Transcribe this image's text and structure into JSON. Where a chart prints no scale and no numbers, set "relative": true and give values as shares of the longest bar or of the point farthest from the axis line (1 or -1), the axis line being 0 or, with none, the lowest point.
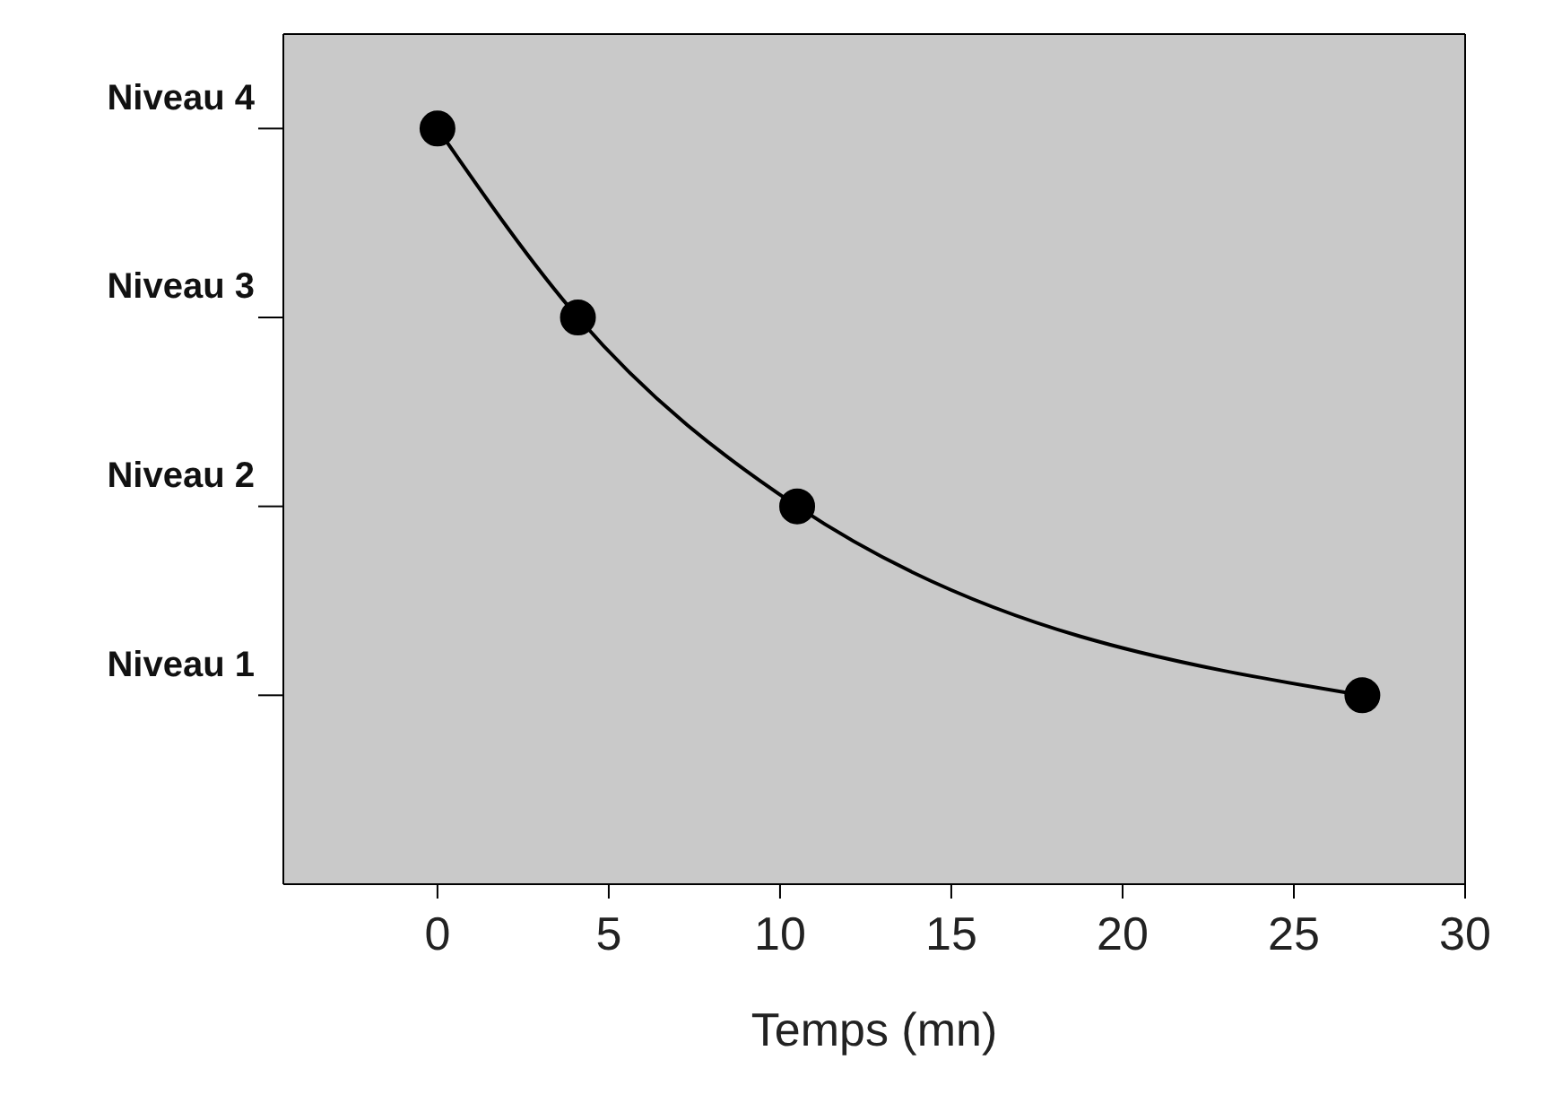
{
  "chart_data": {
    "type": "line",
    "xlabel": "Temps (mn)",
    "x": [
      0,
      4.1,
      10.5,
      27
    ],
    "y_categories": [
      "Niveau 4",
      "Niveau 3",
      "Niveau 2",
      "Niveau 1"
    ],
    "series": [
      {
        "color": "#000000",
        "values": [
          1,
          0.75,
          0.5,
          0.25
        ]
      }
    ],
    "relative": true,
    "xlim": [
      -4.5,
      30
    ],
    "xticks": [
      0,
      5,
      10,
      15,
      20,
      25,
      30
    ],
    "marker": "circle",
    "line_style": "solid",
    "legend": false
  }
}
